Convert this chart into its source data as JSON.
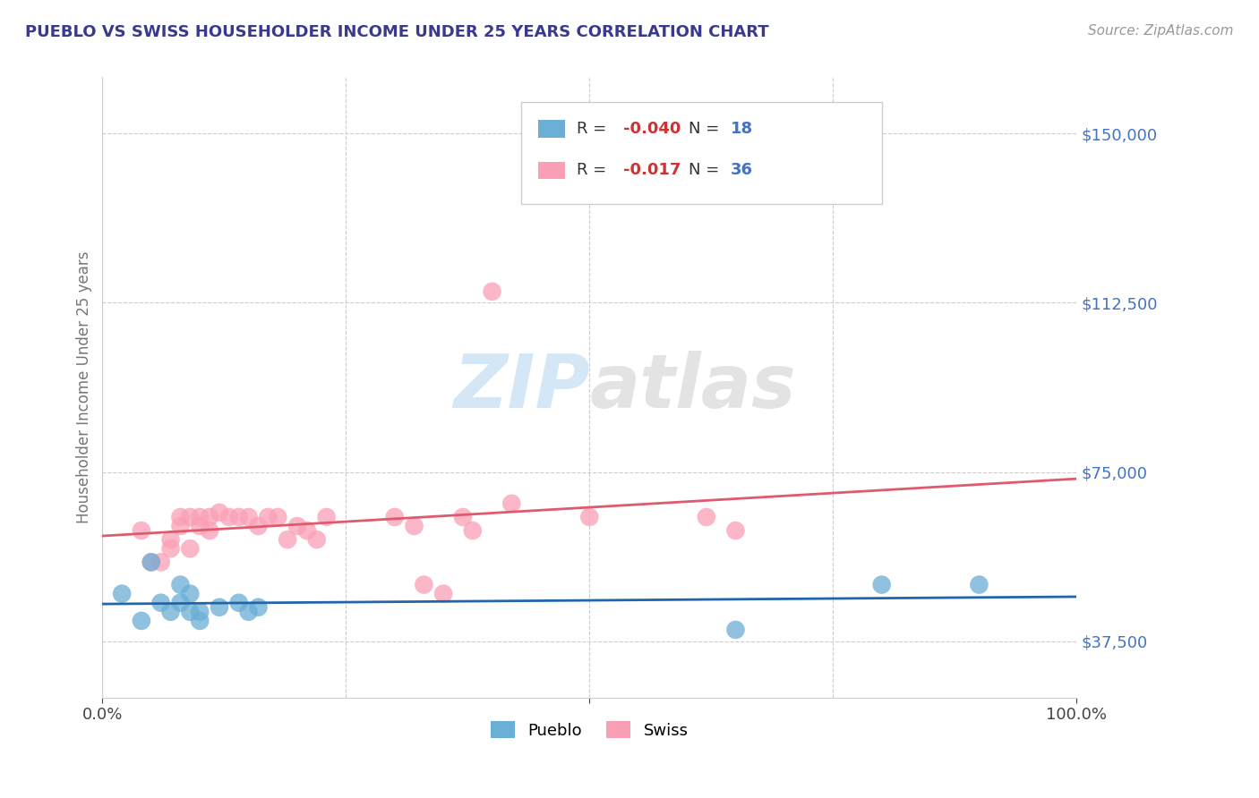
{
  "title": "PUEBLO VS SWISS HOUSEHOLDER INCOME UNDER 25 YEARS CORRELATION CHART",
  "source_text": "Source: ZipAtlas.com",
  "ylabel": "Householder Income Under 25 years",
  "xlim": [
    0,
    1
  ],
  "ylim": [
    25000,
    162500
  ],
  "yticks": [
    37500,
    75000,
    112500,
    150000
  ],
  "yticklabels": [
    "$37,500",
    "$75,000",
    "$112,500",
    "$150,000"
  ],
  "pueblo_R": "-0.040",
  "pueblo_N": "18",
  "swiss_R": "-0.017",
  "swiss_N": "36",
  "pueblo_color": "#6baed6",
  "swiss_color": "#fa9fb5",
  "pueblo_line_color": "#2166ac",
  "swiss_line_color": "#e05a6e",
  "legend_pueblo": "Pueblo",
  "legend_swiss": "Swiss",
  "watermark_zip": "ZIP",
  "watermark_atlas": "atlas",
  "background_color": "#ffffff",
  "grid_color": "#cccccc",
  "title_color": "#3a3a8c",
  "axis_label_color": "#777777",
  "tick_color_y": "#4472c4",
  "pueblo_x": [
    0.02,
    0.04,
    0.05,
    0.06,
    0.07,
    0.08,
    0.08,
    0.09,
    0.09,
    0.1,
    0.1,
    0.12,
    0.14,
    0.15,
    0.16,
    0.8,
    0.9,
    0.65
  ],
  "pueblo_y": [
    48000,
    42000,
    55000,
    46000,
    44000,
    50000,
    46000,
    48000,
    44000,
    44000,
    42000,
    45000,
    46000,
    44000,
    45000,
    50000,
    50000,
    40000
  ],
  "swiss_x": [
    0.04,
    0.05,
    0.06,
    0.07,
    0.07,
    0.08,
    0.08,
    0.09,
    0.09,
    0.1,
    0.1,
    0.11,
    0.11,
    0.12,
    0.13,
    0.14,
    0.15,
    0.16,
    0.17,
    0.18,
    0.19,
    0.2,
    0.21,
    0.22,
    0.23,
    0.3,
    0.32,
    0.33,
    0.35,
    0.37,
    0.38,
    0.4,
    0.42,
    0.5,
    0.62,
    0.65
  ],
  "swiss_y": [
    62000,
    55000,
    55000,
    60000,
    58000,
    65000,
    63000,
    65000,
    58000,
    65000,
    63000,
    65000,
    62000,
    66000,
    65000,
    65000,
    65000,
    63000,
    65000,
    65000,
    60000,
    63000,
    62000,
    60000,
    65000,
    65000,
    63000,
    50000,
    48000,
    65000,
    62000,
    115000,
    68000,
    65000,
    65000,
    62000
  ]
}
